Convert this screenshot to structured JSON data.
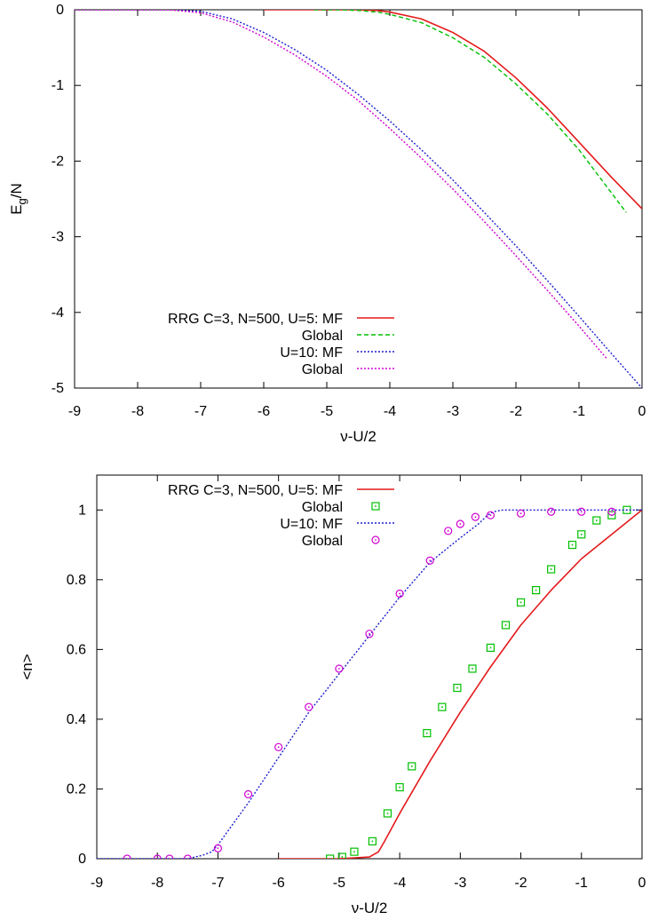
{
  "chart_data": [
    {
      "type": "line",
      "xlabel": "ν-U/2",
      "ylabel": "E_g/N",
      "xlim": [
        -9,
        0
      ],
      "ylim": [
        -5,
        0
      ],
      "xticks": [
        "-9",
        "-8",
        "-7",
        "-6",
        "-5",
        "-4",
        "-3",
        "-2",
        "-1",
        "0"
      ],
      "yticks": [
        "0",
        "-1",
        "-2",
        "-3",
        "-4",
        "-5"
      ],
      "legend_position": "bottom-left",
      "series": [
        {
          "name": "RRG C=3, N=500, U=5: MF",
          "style": "solid",
          "color": "#e41a1c",
          "x": [
            -6.0,
            -5.0,
            -4.5,
            -4.2,
            -4.0,
            -3.5,
            -3.0,
            -2.5,
            -2.0,
            -1.5,
            -1.0,
            -0.5,
            0.0
          ],
          "y": [
            0.0,
            0.0,
            0.0,
            -0.01,
            -0.03,
            -0.12,
            -0.3,
            -0.55,
            -0.9,
            -1.3,
            -1.75,
            -2.2,
            -2.63
          ]
        },
        {
          "name": "Global",
          "style": "dashed",
          "color": "#00c000",
          "x": [
            -5.2,
            -4.8,
            -4.5,
            -4.2,
            -4.0,
            -3.5,
            -3.0,
            -2.5,
            -2.0,
            -1.5,
            -1.0,
            -0.25
          ],
          "y": [
            0.0,
            0.0,
            -0.01,
            -0.03,
            -0.06,
            -0.17,
            -0.37,
            -0.63,
            -0.98,
            -1.38,
            -1.85,
            -2.68
          ]
        },
        {
          "name": "U=10: MF",
          "style": "dotted",
          "color": "#1f1fd0",
          "x": [
            -9.0,
            -7.5,
            -7.0,
            -6.5,
            -6.0,
            -5.5,
            -5.0,
            -4.5,
            -4.0,
            -3.5,
            -3.0,
            -2.5,
            -2.0,
            -1.5,
            -1.0,
            -0.5,
            0.0
          ],
          "y": [
            0.0,
            0.0,
            -0.02,
            -0.12,
            -0.3,
            -0.53,
            -0.8,
            -1.12,
            -1.47,
            -1.85,
            -2.25,
            -2.68,
            -3.12,
            -3.58,
            -4.05,
            -4.53,
            -5.0
          ]
        },
        {
          "name": "Global",
          "style": "dotted",
          "color": "#d000d0",
          "x": [
            -9.0,
            -7.5,
            -7.0,
            -6.5,
            -6.0,
            -5.5,
            -5.0,
            -4.5,
            -4.0,
            -3.5,
            -3.0,
            -2.5,
            -2.0,
            -1.5,
            -1.0,
            -0.55
          ],
          "y": [
            0.0,
            0.0,
            -0.04,
            -0.16,
            -0.36,
            -0.6,
            -0.88,
            -1.2,
            -1.57,
            -1.96,
            -2.37,
            -2.8,
            -3.25,
            -3.71,
            -4.18,
            -4.62
          ]
        }
      ]
    },
    {
      "type": "line",
      "xlabel": "ν-U/2",
      "ylabel": "<n>",
      "xlim": [
        -9,
        0
      ],
      "ylim": [
        0,
        1.1
      ],
      "xticks": [
        "-9",
        "-8",
        "-7",
        "-6",
        "-5",
        "-4",
        "-3",
        "-2",
        "-1",
        "0"
      ],
      "yticks": [
        "0",
        "0.2",
        "0.4",
        "0.6",
        "0.8",
        "1"
      ],
      "legend_position": "top-left",
      "series": [
        {
          "name": "RRG C=3, N=500, U=5: MF",
          "style": "solid",
          "color": "#e41a1c",
          "x": [
            -6.0,
            -5.0,
            -4.5,
            -4.35,
            -4.25,
            -4.0,
            -3.5,
            -3.0,
            -2.5,
            -2.0,
            -1.5,
            -1.0,
            -0.5,
            0.0
          ],
          "y": [
            0.0,
            0.0,
            0.005,
            0.02,
            0.05,
            0.13,
            0.28,
            0.42,
            0.55,
            0.67,
            0.77,
            0.86,
            0.93,
            1.0
          ]
        },
        {
          "name": "Global",
          "style": "squares",
          "color": "#00c000",
          "x": [
            -5.15,
            -4.95,
            -4.75,
            -4.45,
            -4.2,
            -4.0,
            -3.8,
            -3.55,
            -3.3,
            -3.05,
            -2.8,
            -2.5,
            -2.25,
            -2.0,
            -1.75,
            -1.5,
            -1.15,
            -1.0,
            -0.75,
            -0.5,
            -0.25
          ],
          "y": [
            0.0,
            0.005,
            0.02,
            0.05,
            0.13,
            0.205,
            0.265,
            0.36,
            0.435,
            0.49,
            0.545,
            0.605,
            0.67,
            0.735,
            0.77,
            0.83,
            0.9,
            0.93,
            0.97,
            0.985,
            1.0
          ]
        },
        {
          "name": "U=10: MF",
          "style": "dotted",
          "color": "#1f1fd0",
          "x": [
            -9.0,
            -7.5,
            -7.25,
            -7.1,
            -7.0,
            -6.5,
            -6.0,
            -5.5,
            -5.0,
            -4.5,
            -4.0,
            -3.5,
            -3.0,
            -2.7,
            -2.55,
            -2.45,
            -2.3,
            0.0
          ],
          "y": [
            0.0,
            0.0,
            0.01,
            0.02,
            0.04,
            0.16,
            0.29,
            0.42,
            0.53,
            0.64,
            0.75,
            0.85,
            0.92,
            0.96,
            0.985,
            0.995,
            1.0,
            1.0
          ]
        },
        {
          "name": "Global",
          "style": "circles",
          "color": "#d000d0",
          "x": [
            -8.5,
            -8.0,
            -7.8,
            -7.5,
            -7.0,
            -6.5,
            -6.0,
            -5.5,
            -5.0,
            -4.5,
            -4.0,
            -3.5,
            -3.2,
            -3.0,
            -2.75,
            -2.5,
            -2.0,
            -1.5,
            -1.0,
            -0.5
          ],
          "y": [
            0.0,
            0.0,
            0.0,
            0.0,
            0.03,
            0.185,
            0.32,
            0.435,
            0.545,
            0.645,
            0.76,
            0.855,
            0.94,
            0.96,
            0.98,
            0.985,
            0.99,
            0.995,
            0.995,
            0.995
          ]
        }
      ]
    }
  ]
}
